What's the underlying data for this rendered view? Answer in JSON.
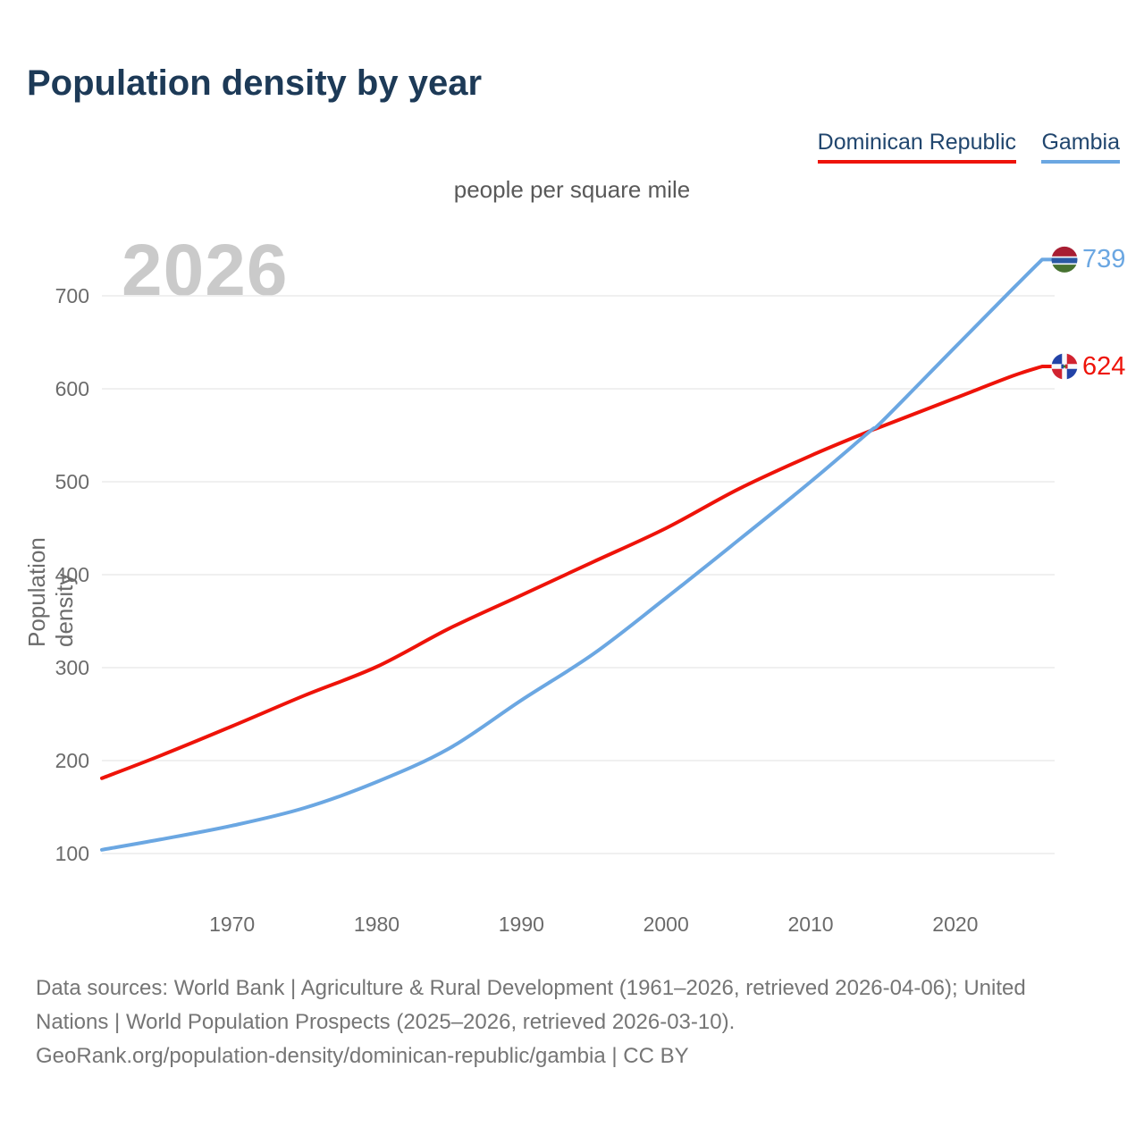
{
  "title": "Population density by year",
  "subtitle": "people per square mile",
  "watermark": "2026",
  "legend": [
    {
      "label": "Dominican Republic",
      "color": "#ee1309"
    },
    {
      "label": "Gambia",
      "color": "#6ba7e2"
    }
  ],
  "flags": {
    "dominican_republic": {
      "white": "#f7f9fb",
      "blue": "#2243a7",
      "red": "#d12330",
      "emblem_green": "#3a7728"
    },
    "gambia": {
      "red": "#a81e33",
      "white": "#f7f9fb",
      "blue": "#2b59a4",
      "green": "#477231"
    }
  },
  "footer": {
    "lines": [
      "Data sources: World Bank | Agriculture & Rural Development (1961–2026, retrieved 2026-04-06); United",
      "Nations | World Population Prospects (2025–2026, retrieved 2026-03-10).",
      "GeoRank.org/population-density/dominican-republic/gambia | CC BY"
    ]
  },
  "chart_data": {
    "type": "line",
    "title": "Population density by year",
    "unit": "people per square mile",
    "ylabel": "Population density",
    "xlabel": "",
    "grid": "horizontal",
    "legend_position": "top-right",
    "xlim": [
      1961,
      2026
    ],
    "x_ticks": [
      1970,
      1980,
      1990,
      2000,
      2010,
      2020
    ],
    "y_ticks": [
      100,
      200,
      300,
      400,
      500,
      600,
      700
    ],
    "x": [
      1961,
      1965,
      1970,
      1975,
      1980,
      1985,
      1990,
      1995,
      2000,
      2005,
      2010,
      2014,
      2015,
      2020,
      2024,
      2026
    ],
    "series": [
      {
        "name": "Dominican Republic",
        "color": "#ee1309",
        "end_label": 624,
        "values": [
          181,
          205,
          237,
          270,
          301,
          342,
          378,
          414,
          450,
          492,
          528,
          554,
          560,
          590,
          614,
          624
        ]
      },
      {
        "name": "Gambia",
        "color": "#6ba7e2",
        "end_label": 739,
        "values": [
          104,
          115,
          130,
          149,
          177,
          213,
          265,
          315,
          375,
          437,
          500,
          553,
          566,
          645,
          708,
          739
        ]
      }
    ]
  }
}
